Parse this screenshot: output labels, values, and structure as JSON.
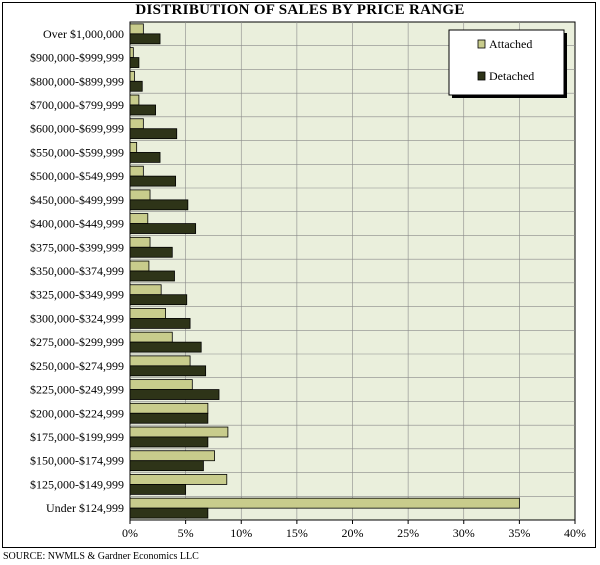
{
  "chart_data": {
    "type": "bar",
    "orientation": "horizontal",
    "title": "DISTRIBUTION OF SALES BY PRICE RANGE",
    "categories": [
      "Over $1,000,000",
      "$900,000-$999,999",
      "$800,000-$899,999",
      "$700,000-$799,999",
      "$600,000-$699,999",
      "$550,000-$599,999",
      "$500,000-$549,999",
      "$450,000-$499,999",
      "$400,000-$449,999",
      "$375,000-$399,999",
      "$350,000-$374,999",
      "$325,000-$349,999",
      "$300,000-$324,999",
      "$275,000-$299,999",
      "$250,000-$274,999",
      "$225,000-$249,999",
      "$200,000-$224,999",
      "$175,000-$199,999",
      "$150,000-$174,999",
      "$125,000-$149,999",
      "Under $124,999"
    ],
    "series": [
      {
        "name": "Attached",
        "color": "#c8cc8c",
        "values": [
          1.2,
          0.3,
          0.4,
          0.8,
          1.2,
          0.6,
          1.2,
          1.8,
          1.6,
          1.8,
          1.7,
          2.8,
          3.2,
          3.8,
          5.4,
          5.6,
          7.0,
          8.8,
          7.6,
          8.7,
          35.0
        ]
      },
      {
        "name": "Detached",
        "color": "#2e3418",
        "values": [
          2.7,
          0.8,
          1.1,
          2.3,
          4.2,
          2.7,
          4.1,
          5.2,
          5.9,
          3.8,
          4.0,
          5.1,
          5.4,
          6.4,
          6.8,
          8.0,
          7.0,
          7.0,
          6.6,
          5.0,
          7.0
        ]
      }
    ],
    "x_ticks": [
      "0%",
      "5%",
      "10%",
      "15%",
      "20%",
      "25%",
      "30%",
      "35%",
      "40%"
    ],
    "xlim": [
      0,
      40
    ],
    "grid": true,
    "legend_position": "top-right",
    "plot_background": "#eaefdc"
  },
  "footer": {
    "source": "SOURCE: NWMLS & Gardner Economics LLC"
  }
}
